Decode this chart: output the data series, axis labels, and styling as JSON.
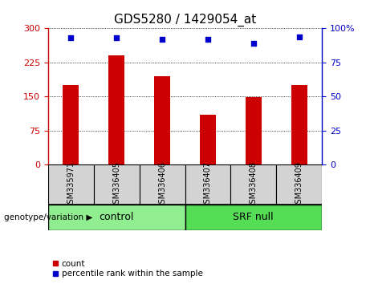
{
  "title": "GDS5280 / 1429054_at",
  "samples": [
    "GSM335971",
    "GSM336405",
    "GSM336406",
    "GSM336407",
    "GSM336408",
    "GSM336409"
  ],
  "counts": [
    175,
    240,
    195,
    110,
    148,
    175
  ],
  "percentile_ranks": [
    93,
    93,
    92,
    92,
    89,
    94
  ],
  "ylim_left": [
    0,
    300
  ],
  "ylim_right": [
    0,
    100
  ],
  "yticks_left": [
    0,
    75,
    150,
    225,
    300
  ],
  "yticks_right": [
    0,
    25,
    50,
    75,
    100
  ],
  "bar_color": "#cc0000",
  "dot_color": "#0000cc",
  "background_color": "#ffffff",
  "xticklabels_bg": "#d3d3d3",
  "group_color_control": "#90EE90",
  "group_color_srf": "#55dd55",
  "group_label_control": "control",
  "group_label_srf": "SRF null",
  "legend_count_color": "#cc0000",
  "legend_pct_color": "#0000cc",
  "title_fontsize": 11,
  "tick_fontsize": 8,
  "sample_fontsize": 7,
  "group_fontsize": 9
}
